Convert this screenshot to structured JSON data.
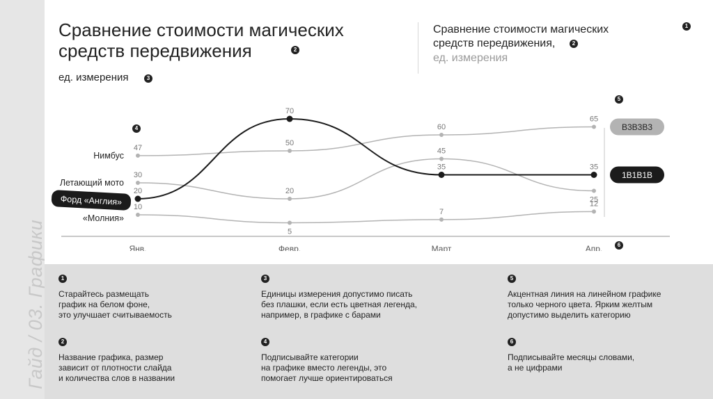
{
  "sidebar_caption": "Гайд / 03. Графики",
  "heading": {
    "title": "Сравнение стоимости магических\nсредств передвижения",
    "unit": "ед. измерения",
    "alt_title": "Сравнение стоимости магических\nсредств передвижения,",
    "alt_unit": "ед. измерения"
  },
  "badges": {
    "b1": "1",
    "b2": "2",
    "b2b": "2",
    "b3": "3",
    "b4": "4",
    "b5": "5",
    "b6": "6"
  },
  "chart_data": {
    "type": "line",
    "categories": [
      "Янв.",
      "Февр.",
      "Март",
      "Апр."
    ],
    "series": [
      {
        "name": "Нимбус",
        "values": [
          47,
          50,
          60,
          65
        ],
        "end_label": "B3B3B3",
        "color": "#b3b3b3"
      },
      {
        "name": "Летающий мото",
        "values": [
          30,
          20,
          45,
          25
        ],
        "color": "#b3b3b3"
      },
      {
        "name": "Форд «Англия»",
        "values": [
          20,
          70,
          35,
          35
        ],
        "end_label": "1B1B1B",
        "color": "#1b1b1b",
        "accent": true
      },
      {
        "name": "«Молния»",
        "values": [
          10,
          5,
          7,
          12
        ],
        "color": "#b3b3b3"
      }
    ],
    "colors": {
      "accent": "#1b1b1b",
      "muted": "#b3b3b3"
    }
  },
  "tips": [
    {
      "num": "1",
      "text": "Старайтесь размещать\nграфик на белом фоне,\nэто улучшает считываемость"
    },
    {
      "num": "2",
      "text": "Название графика, размер\nзависит от плотности слайда\nи количества слов в названии"
    },
    {
      "num": "3",
      "text": "Единицы измерения допустимо писать\nбез плашки, если есть цветная легенда,\nнапример, в графике с барами"
    },
    {
      "num": "4",
      "text": "Подписывайте категории\nна графике вместо легенды, это\nпомогает лучше ориентироваться"
    },
    {
      "num": "5",
      "text": "Акцентная линия на линейном графике\nтолько черного цвета. Ярким желтым\nдопустимо выделить категорию"
    },
    {
      "num": "6",
      "text": "Подписывайте месяцы словами,\nа не цифрами"
    }
  ]
}
